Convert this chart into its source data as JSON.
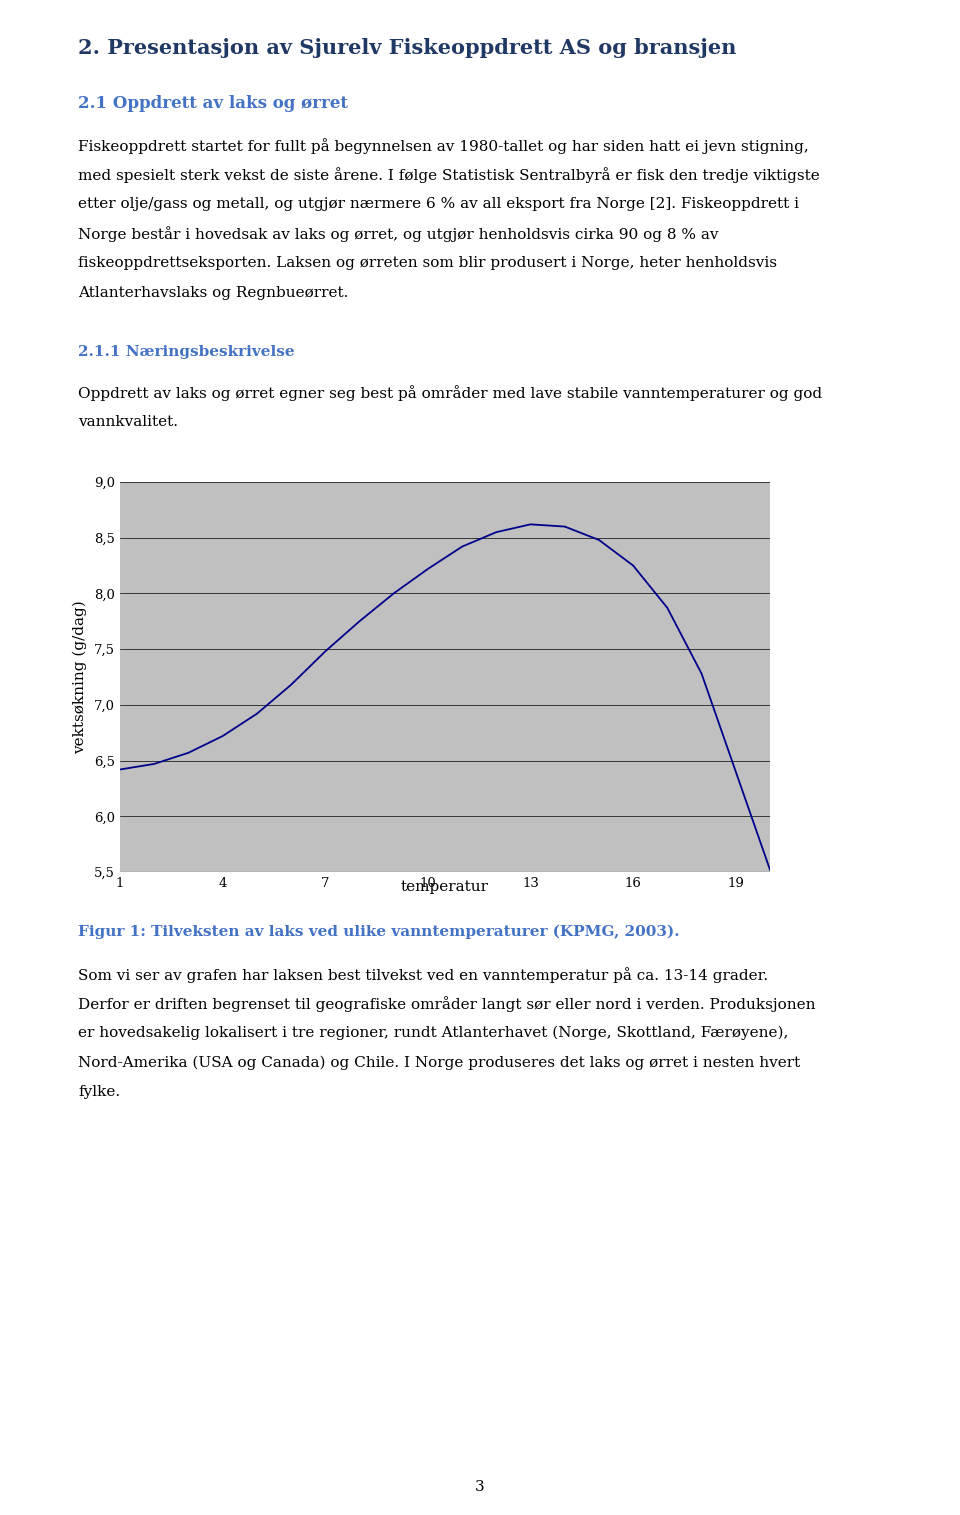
{
  "page_title": "2. Presentasjon av Sjurelv Fiskeoppdrett AS og bransjen",
  "section_title": "2.1 Oppdrett av laks og ørret",
  "para1_line1": "Fiskeoppdrett startet for fullt på begynnelsen av 1980-tallet og har siden hatt ei jevn stigning,",
  "para1_line2": "med spesielt sterk vekst de siste årene. I følge Statistisk Sentralbyrå er fisk den tredje viktigste",
  "para1_line3": "etter olje/gass og metall, og utgjør nærmere 6 % av all eksport fra Norge [2]. Fiskeoppdrett i",
  "para1_line4": "Norge består i hovedsak av laks og ørret, og utgjør henholdsvis cirka 90 og 8 % av",
  "para1_line5": "fiskeoppdrettseksporten. Laksen og ørreten som blir produsert i Norge, heter henholdsvis",
  "para1_line6": "Atlanterhavslaks og Regnbueørret.",
  "subsection_title": "2.1.1 Næringsbeskrivelse",
  "para2_line1": "Oppdrett av laks og ørret egner seg best på områder med lave stabile vanntemperaturer og god",
  "para2_line2": "vannkvalitet.",
  "chart_ylabel": "vektsøkning (g/dag)",
  "chart_xlabel": "temperatur",
  "chart_yticks": [
    5.5,
    6.0,
    6.5,
    7.0,
    7.5,
    8.0,
    8.5,
    9.0
  ],
  "chart_xticks": [
    1,
    4,
    7,
    10,
    13,
    16,
    19
  ],
  "chart_ylim": [
    5.5,
    9.0
  ],
  "chart_xlim": [
    1,
    20
  ],
  "chart_bg": "#C0C0C0",
  "line_color": "#00008B",
  "fig_caption": "Figur 1: Tilveksten av laks ved ulike vanntemperaturer (KPMG, 2003).",
  "para3_line1": "Som vi ser av grafen har laksen best tilvekst ved en vanntemperatur på ca. 13-14 grader.",
  "para3_line2": "Derfor er driften begrenset til geografiske områder langt sør eller nord i verden. Produksjonen",
  "para3_line3": "er hovedsakelig lokalisert i tre regioner, rundt Atlanterhavet (Norge, Skottland, Færøyene),",
  "para3_line4": "Nord-Amerika (USA og Canada) og Chile. I Norge produseres det laks og ørret i nesten hvert",
  "para3_line5": "fylke.",
  "page_number": "3",
  "title_color": "#1F3864",
  "section_color": "#4472C4",
  "subsection_color": "#4472C4",
  "caption_color": "#4472C4",
  "body_color": "#000000",
  "page_bg": "#FFFFFF",
  "chart_x_data": [
    1,
    2,
    3,
    4,
    5,
    6,
    7,
    8,
    9,
    10,
    11,
    12,
    13,
    14,
    15,
    16,
    17,
    18,
    19,
    20
  ],
  "chart_y_data": [
    6.42,
    6.47,
    6.57,
    6.72,
    6.92,
    7.18,
    7.48,
    7.75,
    8.0,
    8.22,
    8.42,
    8.55,
    8.62,
    8.6,
    8.48,
    8.25,
    7.87,
    7.28,
    6.4,
    5.52
  ],
  "title_fs": 15,
  "section_fs": 12,
  "subsection_fs": 11,
  "body_fs": 11,
  "caption_fs": 11
}
